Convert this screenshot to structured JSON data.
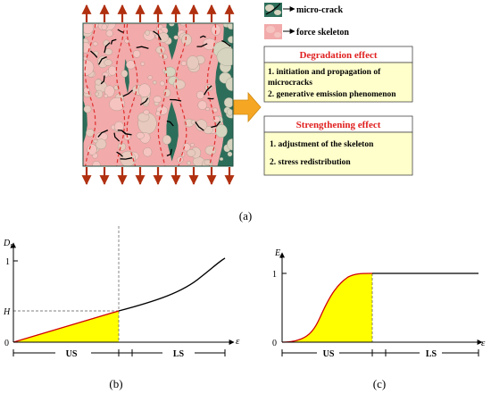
{
  "legend": {
    "micro_crack": "micro-crack",
    "force_skeleton": "force skeleton"
  },
  "degradation": {
    "title": "Degradation effect",
    "item1_line1": "1. initiation and propagation of",
    "item1_line2": "microcracks",
    "item2": "2. generative emission phenomenon"
  },
  "strengthening": {
    "title": "Strengthening effect",
    "item1": "1. adjustment of the skeleton",
    "item2": "2. stress redistribution"
  },
  "panels": {
    "a": "(a)",
    "b": "(b)",
    "c": "(c)"
  },
  "chart_b": {
    "y_label_main": "D",
    "y_label_sub": "R",
    "y_tick_1": "1",
    "y_tick_h": "H",
    "origin": "0",
    "x_label": "ε",
    "region_us": "US",
    "region_ls": "LS"
  },
  "chart_c": {
    "y_label_main": "E",
    "y_label_sub": "t",
    "y_tick_1": "1",
    "origin": "0",
    "x_label": "ε",
    "region_us": "US",
    "region_ls": "LS"
  },
  "colors": {
    "matrix_green": "#2d6e5a",
    "aggregate": "#d6d3bf",
    "skeleton_pink": "#f2aaaa",
    "skeleton_dash": "#e03030",
    "arrow_orange": "#f5a623",
    "box_fill": "#ffffcc",
    "title_red": "#e02020",
    "fill_yellow": "#ffff00",
    "curve_red": "#d00000"
  }
}
